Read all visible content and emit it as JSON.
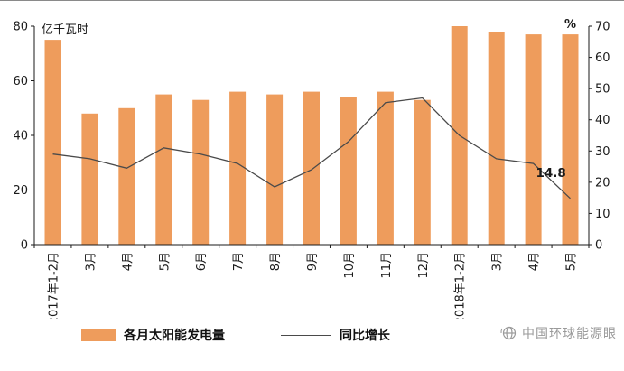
{
  "chart_data": {
    "type": "bar+line",
    "categories": [
      "2017年1-2月",
      "3月",
      "4月",
      "5月",
      "6月",
      "7月",
      "8月",
      "9月",
      "10月",
      "11月",
      "12月",
      "2018年1-2月",
      "3月",
      "4月",
      "5月"
    ],
    "series": [
      {
        "name": "各月太阳能发电量",
        "type": "bar",
        "axis": "left",
        "color": "#ee9c5c",
        "values": [
          75,
          48,
          50,
          55,
          53,
          56,
          55,
          56,
          54,
          56,
          53,
          80,
          78,
          77,
          77
        ]
      },
      {
        "name": "同比增长",
        "type": "line",
        "axis": "right",
        "color": "#4a4a4a",
        "values": [
          29,
          27.5,
          24.5,
          31,
          29,
          26,
          18.5,
          24,
          33,
          45.5,
          47,
          35,
          27.5,
          26,
          14.8
        ]
      }
    ],
    "left_axis": {
      "label": "亿千瓦时",
      "min": 0,
      "max": 80,
      "ticks": [
        0,
        20,
        40,
        60,
        80
      ]
    },
    "right_axis": {
      "label": "%",
      "min": 0,
      "max": 70,
      "ticks": [
        0,
        10,
        20,
        30,
        40,
        50,
        60,
        70
      ]
    },
    "annotation": {
      "text": "14.8",
      "index": 14
    },
    "grid": "off",
    "legend_position": "bottom"
  },
  "watermark": {
    "text": "中国环球能源眼"
  }
}
